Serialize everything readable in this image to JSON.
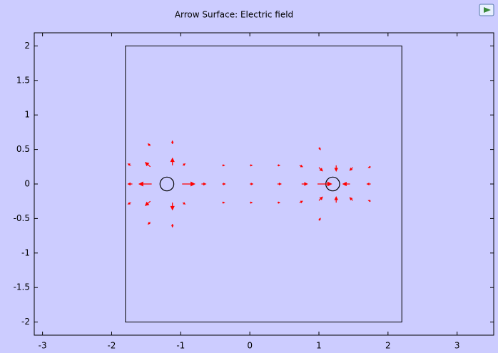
{
  "chart_data": {
    "type": "quiver",
    "title": "Arrow Surface: Electric field",
    "xlim": [
      -3.12,
      3.53
    ],
    "ylim": [
      -2.19,
      2.19
    ],
    "xticks": [
      -3,
      -2,
      -1,
      0,
      1,
      2,
      3
    ],
    "yticks": [
      -2,
      -1.5,
      -1,
      -0.5,
      0,
      0.5,
      1,
      1.5,
      2
    ],
    "color": "#ff0000",
    "geometry": {
      "rect": {
        "x": [
          -1.8,
          2.2
        ],
        "y": [
          -2,
          2
        ]
      },
      "circles": [
        {
          "cx": -1.2,
          "cy": 0,
          "r": 0.1
        },
        {
          "cx": 1.2,
          "cy": 0,
          "r": 0.1
        }
      ]
    },
    "x": [
      -1.42,
      -0.98,
      -1.12,
      -1.12,
      -1.44,
      -1.44,
      -0.97,
      -0.97,
      -1.7,
      -0.7,
      -1.72,
      -1.72,
      -1.44,
      -1.12,
      -1.44,
      -1.12,
      0.98,
      1.45,
      1.25,
      1.25,
      1.0,
      1.0,
      1.49,
      1.49,
      0.75,
      1.75,
      1.75,
      1.75,
      0.72,
      0.72,
      1.0,
      1.0,
      -0.4,
      0,
      0.4,
      -0.4,
      0.4,
      -0.4,
      0.4,
      0,
      0
    ],
    "y": [
      0,
      0,
      0.27,
      -0.27,
      0.25,
      -0.25,
      0.27,
      -0.27,
      0,
      0,
      0.27,
      -0.27,
      0.55,
      0.58,
      -0.55,
      -0.58,
      0,
      0,
      0.27,
      -0.27,
      0.24,
      -0.24,
      0.24,
      -0.24,
      0,
      0,
      0.25,
      -0.25,
      0.27,
      -0.27,
      0.53,
      -0.53,
      0,
      0,
      0,
      0.27,
      0.27,
      -0.27,
      -0.27,
      0.27,
      -0.27
    ],
    "u": [
      -0.18,
      0.18,
      0,
      0,
      -0.07,
      -0.07,
      0.03,
      0.03,
      -0.06,
      0.06,
      -0.04,
      -0.04,
      -0.03,
      0,
      -0.03,
      0,
      0.2,
      -0.1,
      0,
      0,
      0.05,
      0.05,
      -0.04,
      -0.04,
      0.08,
      -0.05,
      -0.03,
      -0.03,
      0.04,
      0.04,
      0.02,
      0.02,
      0.04,
      0.04,
      0.05,
      0.03,
      0.03,
      0.03,
      0.03,
      0.03,
      0.03
    ],
    "v": [
      0,
      0,
      0.1,
      -0.1,
      0.06,
      -0.06,
      0.02,
      -0.02,
      0,
      0,
      0.02,
      -0.02,
      0.03,
      0.04,
      -0.03,
      -0.04,
      0,
      0,
      -0.08,
      0.08,
      -0.05,
      0.05,
      -0.04,
      0.04,
      0,
      0,
      -0.01,
      0.01,
      -0.02,
      0.02,
      -0.03,
      0.03,
      0,
      0,
      0,
      0,
      0,
      0,
      0,
      0,
      0
    ]
  }
}
